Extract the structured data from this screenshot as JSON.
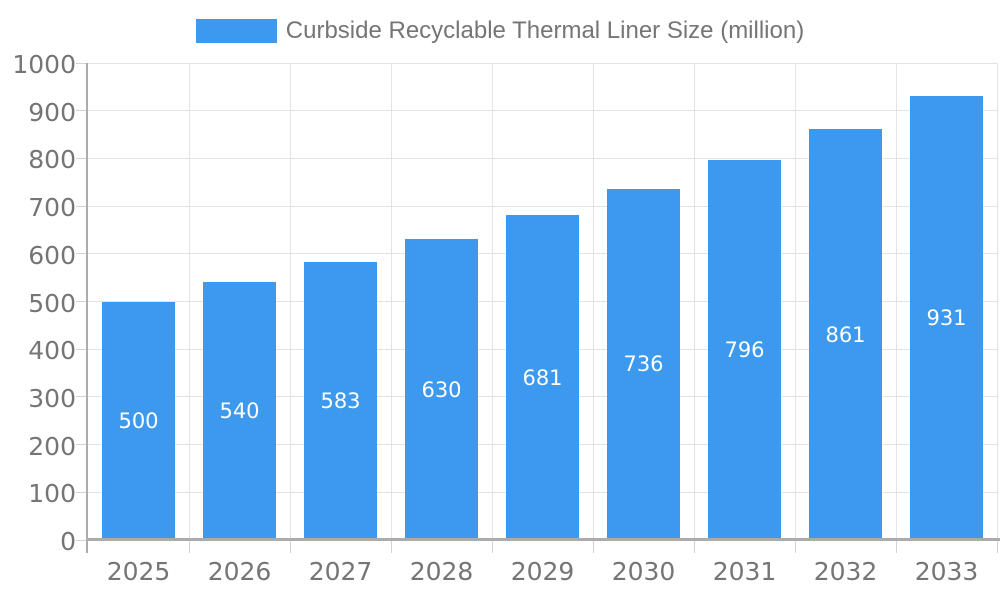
{
  "chart_data": {
    "type": "bar",
    "title": "Curbside Recyclable Thermal Liner Size (million)",
    "categories": [
      "2025",
      "2026",
      "2027",
      "2028",
      "2029",
      "2030",
      "2031",
      "2032",
      "2033"
    ],
    "values": [
      500,
      540,
      583,
      630,
      681,
      736,
      796,
      861,
      931
    ],
    "bar_labels": [
      "500",
      "540",
      "583",
      "630",
      "681",
      "736",
      "796",
      "861",
      "931"
    ],
    "xlabel": "",
    "ylabel": "",
    "ylim": [
      0,
      1000
    ],
    "ytick_step": 100,
    "ytick_labels": [
      "0",
      "100",
      "200",
      "300",
      "400",
      "500",
      "600",
      "700",
      "800",
      "900",
      "1000"
    ],
    "legend_position": "top",
    "grid": true,
    "colors": {
      "bar": "#3C99EE",
      "axis_text": "#757575",
      "legend_text": "#757575",
      "grid_line": "#E3E3E3",
      "tick_line": "#D2D2D2",
      "axis_line": "#ABABAB",
      "bar_label_text": "#FFFFFF",
      "background": "#FFFFFF"
    }
  }
}
